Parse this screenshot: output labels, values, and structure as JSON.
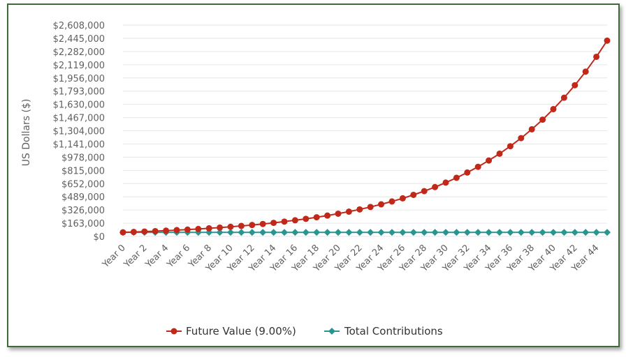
{
  "chart_data": {
    "type": "line",
    "title": "",
    "xlabel": "",
    "ylabel": "US Dollars ($)",
    "ylim": [
      0,
      2608000
    ],
    "y_ticks": [
      "$0",
      "$163,000",
      "$326,000",
      "$489,000",
      "$652,000",
      "$815,000",
      "$978,000",
      "$1,141,000",
      "$1,304,000",
      "$1,467,000",
      "$1,630,000",
      "$1,793,000",
      "$1,956,000",
      "$2,119,000",
      "$2,282,000",
      "$2,445,000",
      "$2,608,000"
    ],
    "y_tick_values": [
      0,
      163000,
      326000,
      489000,
      652000,
      815000,
      978000,
      1141000,
      1304000,
      1467000,
      1630000,
      1793000,
      1956000,
      2119000,
      2282000,
      2445000,
      2608000
    ],
    "x_tick_labels": [
      "Year 0",
      "Year 2",
      "Year 4",
      "Year 6",
      "Year 8",
      "Year 10",
      "Year 12",
      "Year 14",
      "Year 16",
      "Year 18",
      "Year 20",
      "Year 22",
      "Year 24",
      "Year 26",
      "Year 28",
      "Year 30",
      "Year 32",
      "Year 34",
      "Year 36",
      "Year 38",
      "Year 40",
      "Year 42",
      "Year 44"
    ],
    "x": [
      0,
      1,
      2,
      3,
      4,
      5,
      6,
      7,
      8,
      9,
      10,
      11,
      12,
      13,
      14,
      15,
      16,
      17,
      18,
      19,
      20,
      21,
      22,
      23,
      24,
      25,
      26,
      27,
      28,
      29,
      30,
      31,
      32,
      33,
      34,
      35,
      36,
      37,
      38,
      39,
      40,
      41,
      42,
      43,
      44,
      45
    ],
    "series": [
      {
        "name": "Future Value (9.00%)",
        "color": "#c0281a",
        "marker": "circle",
        "values": [
          50000,
          54500,
          59405,
          64751,
          70579,
          76931,
          83855,
          91402,
          99628,
          108595,
          118368,
          129022,
          140633,
          153290,
          167086,
          182124,
          198515,
          216382,
          235856,
          257083,
          280221,
          305440,
          332930,
          362893,
          395554,
          431154,
          469958,
          512254,
          558357,
          608609,
          663383,
          723088,
          788166,
          859101,
          936420,
          1020698,
          1112561,
          1212692,
          1321834,
          1440799,
          1570471,
          1711813,
          1865876,
          2033805,
          2216847,
          2416363
        ]
      },
      {
        "name": "Total Contributions",
        "color": "#2a9490",
        "marker": "diamond",
        "values": [
          50000,
          50000,
          50000,
          50000,
          50000,
          50000,
          50000,
          50000,
          50000,
          50000,
          50000,
          50000,
          50000,
          50000,
          50000,
          50000,
          50000,
          50000,
          50000,
          50000,
          50000,
          50000,
          50000,
          50000,
          50000,
          50000,
          50000,
          50000,
          50000,
          50000,
          50000,
          50000,
          50000,
          50000,
          50000,
          50000,
          50000,
          50000,
          50000,
          50000,
          50000,
          50000,
          50000,
          50000,
          50000,
          50000
        ]
      }
    ],
    "legend_position": "bottom-center"
  }
}
